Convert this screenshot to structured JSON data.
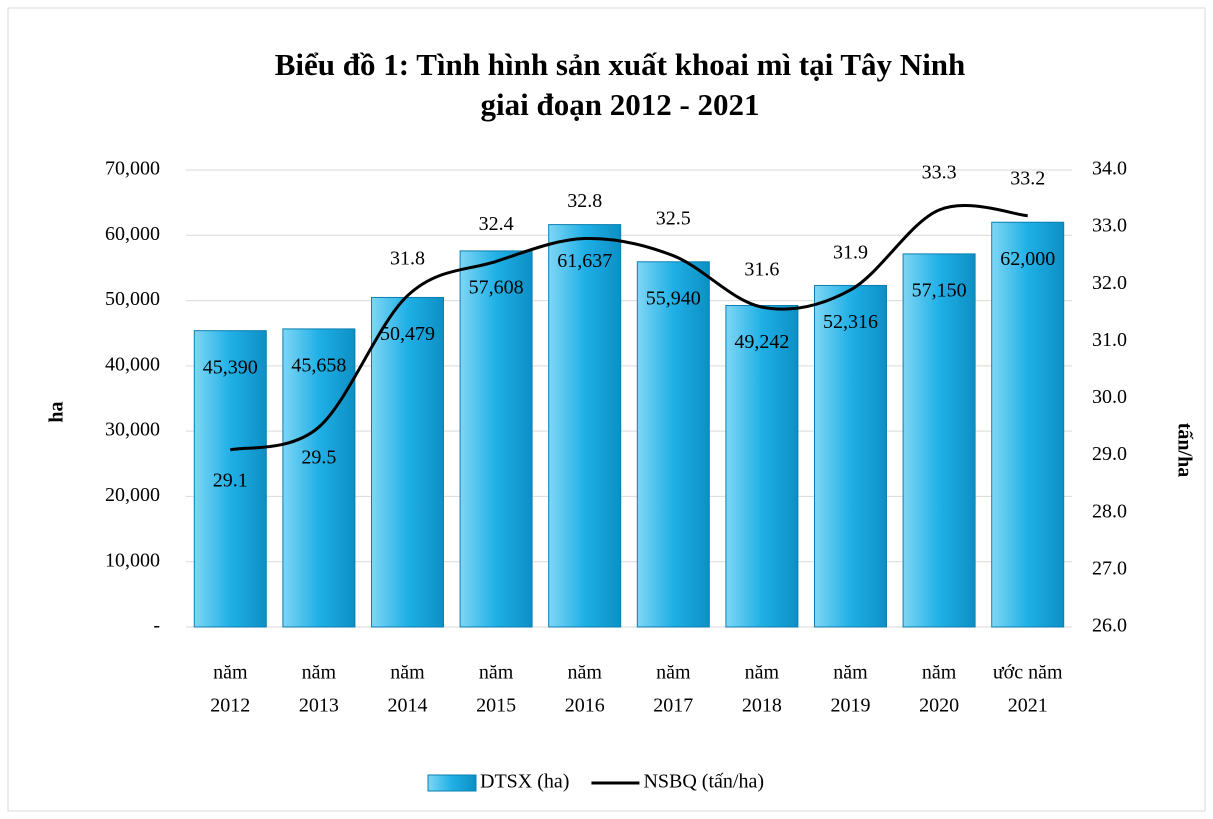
{
  "chart_data": {
    "type": "bar_line",
    "title": [
      "Biểu đồ 1: Tình hình sản xuất khoai mì tại Tây Ninh",
      "giai đoạn 2012 - 2021"
    ],
    "y_label": "ha",
    "y2_label": "tấn/ha",
    "categories": [
      [
        "năm",
        "2012"
      ],
      [
        "năm",
        "2013"
      ],
      [
        "năm",
        "2014"
      ],
      [
        "năm",
        "2015"
      ],
      [
        "năm",
        "2016"
      ],
      [
        "năm",
        "2017"
      ],
      [
        "năm",
        "2018"
      ],
      [
        "năm",
        "2019"
      ],
      [
        "năm",
        "2020"
      ],
      [
        "ước năm",
        "2021"
      ]
    ],
    "series": [
      {
        "name": "DTSX (ha)",
        "type": "bar",
        "color": "#1fb0e6",
        "values": [
          45390,
          45658,
          50479,
          57608,
          61637,
          55940,
          49242,
          52316,
          57150,
          62000
        ],
        "value_labels": [
          "45,390",
          "45,658",
          "50,479",
          "57,608",
          "61,637",
          "55,940",
          "49,242",
          "52,316",
          "57,150",
          "62,000"
        ]
      },
      {
        "name": "NSBQ (tấn/ha)",
        "type": "line",
        "axis": "y2",
        "color": "#000000",
        "values": [
          29.1,
          29.5,
          31.8,
          32.4,
          32.8,
          32.5,
          31.6,
          31.9,
          33.3,
          33.2
        ]
      }
    ],
    "ylim": [
      0,
      70000
    ],
    "yticks": [
      {
        "value": 0,
        "label": "-"
      },
      {
        "value": 10000,
        "label": "10,000"
      },
      {
        "value": 20000,
        "label": "20,000"
      },
      {
        "value": 30000,
        "label": "30,000"
      },
      {
        "value": 40000,
        "label": "40,000"
      },
      {
        "value": 50000,
        "label": "50,000"
      },
      {
        "value": 60000,
        "label": "60,000"
      },
      {
        "value": 70000,
        "label": "70,000"
      }
    ],
    "y2lim": [
      26,
      34
    ],
    "y2ticks": [
      {
        "value": 26,
        "label": "26.0"
      },
      {
        "value": 27,
        "label": "27.0"
      },
      {
        "value": 28,
        "label": "28.0"
      },
      {
        "value": 29,
        "label": "29.0"
      },
      {
        "value": 30,
        "label": "30.0"
      },
      {
        "value": 31,
        "label": "31.0"
      },
      {
        "value": 32,
        "label": "32.0"
      },
      {
        "value": 33,
        "label": "33.0"
      },
      {
        "value": 34,
        "label": "34.0"
      }
    ],
    "grid": true,
    "legend": "bottom"
  }
}
